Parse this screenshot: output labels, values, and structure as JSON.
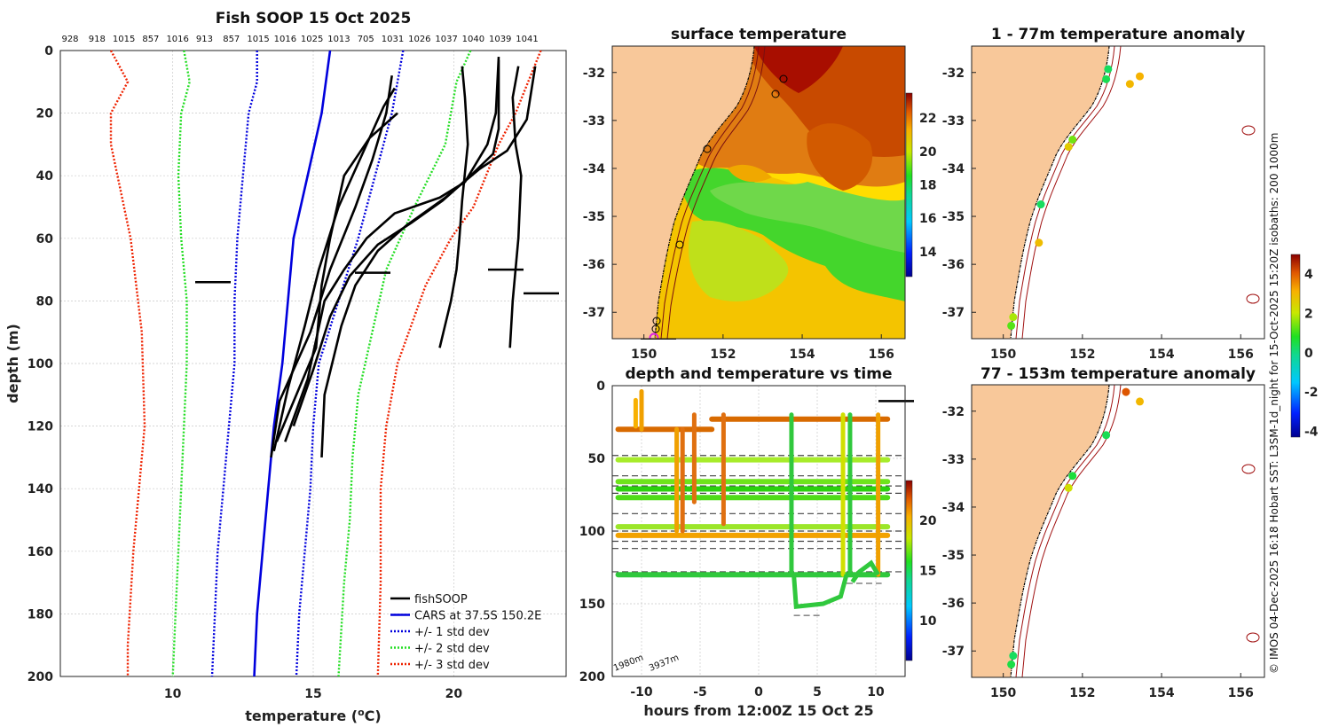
{
  "chart_data": [
    {
      "type": "line",
      "title": "Fish SOOP 15 Oct 2025",
      "xlabel": "temperature (°C)",
      "ylabel": "depth (m)",
      "xlim": [
        6,
        24
      ],
      "ylim": [
        200,
        0
      ],
      "xticks": [
        "10",
        "15",
        "20"
      ],
      "yticks": [
        "0",
        "20",
        "40",
        "60",
        "80",
        "100",
        "120",
        "140",
        "160",
        "180",
        "200"
      ],
      "top_labels": [
        "928",
        "918",
        "1015",
        "857",
        "1016",
        "913",
        "857",
        "1015",
        "1016",
        "1025",
        "1013",
        "705",
        "1031",
        "1026",
        "1037",
        "1040",
        "1039",
        "1041"
      ],
      "legend": [
        "fishSOOP",
        "CARS at 37.5S 150.2E",
        "+/- 1 std dev",
        "+/- 2 std dev",
        "+/- 3 std dev"
      ],
      "series": [
        {
          "name": "CARS at 37.5S 150.2E",
          "color": "#0000dd",
          "points": [
            [
              15.6,
              0
            ],
            [
              15.3,
              20
            ],
            [
              14.8,
              40
            ],
            [
              14.3,
              60
            ],
            [
              13.9,
              100
            ],
            [
              13.6,
              120
            ],
            [
              13.4,
              140
            ],
            [
              13.2,
              160
            ],
            [
              13.0,
              180
            ],
            [
              12.9,
              200
            ]
          ]
        },
        {
          "name": "-1 std dev",
          "color": "#0000dd",
          "points": [
            [
              13.0,
              0
            ],
            [
              13.0,
              10
            ],
            [
              12.7,
              20
            ],
            [
              12.5,
              40
            ],
            [
              12.3,
              60
            ],
            [
              12.2,
              80
            ],
            [
              12.2,
              100
            ],
            [
              12.0,
              120
            ],
            [
              11.8,
              140
            ],
            [
              11.6,
              160
            ],
            [
              11.5,
              180
            ],
            [
              11.4,
              200
            ]
          ]
        },
        {
          "name": "+1 std dev",
          "color": "#0000dd",
          "points": [
            [
              18.2,
              0
            ],
            [
              17.8,
              20
            ],
            [
              17.2,
              40
            ],
            [
              16.6,
              60
            ],
            [
              15.9,
              80
            ],
            [
              15.2,
              100
            ],
            [
              15.0,
              120
            ],
            [
              14.9,
              140
            ],
            [
              14.7,
              160
            ],
            [
              14.5,
              180
            ],
            [
              14.4,
              200
            ]
          ]
        },
        {
          "name": "-2 std dev",
          "color": "#22dd22",
          "points": [
            [
              10.4,
              0
            ],
            [
              10.6,
              10
            ],
            [
              10.3,
              20
            ],
            [
              10.2,
              40
            ],
            [
              10.3,
              60
            ],
            [
              10.5,
              80
            ],
            [
              10.5,
              100
            ],
            [
              10.4,
              120
            ],
            [
              10.3,
              140
            ],
            [
              10.2,
              160
            ],
            [
              10.1,
              180
            ],
            [
              10.0,
              200
            ]
          ]
        },
        {
          "name": "+2 std dev",
          "color": "#22dd22",
          "points": [
            [
              20.6,
              0
            ],
            [
              20.1,
              10
            ],
            [
              19.7,
              30
            ],
            [
              18.6,
              50
            ],
            [
              17.6,
              70
            ],
            [
              17.1,
              90
            ],
            [
              16.6,
              110
            ],
            [
              16.4,
              130
            ],
            [
              16.3,
              150
            ],
            [
              16.1,
              170
            ],
            [
              15.9,
              200
            ]
          ]
        },
        {
          "name": "-3 std dev",
          "color": "#ee2200",
          "points": [
            [
              7.8,
              0
            ],
            [
              8.4,
              10
            ],
            [
              7.8,
              20
            ],
            [
              7.8,
              30
            ],
            [
              8.5,
              60
            ],
            [
              8.9,
              90
            ],
            [
              9.0,
              120
            ],
            [
              8.8,
              140
            ],
            [
              8.6,
              160
            ],
            [
              8.4,
              190
            ],
            [
              8.4,
              200
            ]
          ]
        },
        {
          "name": "+3 std dev",
          "color": "#ee2200",
          "points": [
            [
              23.1,
              0
            ],
            [
              22.2,
              20
            ],
            [
              21.6,
              30
            ],
            [
              20.7,
              50
            ],
            [
              19.9,
              60
            ],
            [
              19.0,
              75
            ],
            [
              18.0,
              100
            ],
            [
              17.6,
              120
            ],
            [
              17.4,
              140
            ],
            [
              17.4,
              170
            ],
            [
              17.3,
              200
            ]
          ]
        },
        {
          "name": "fishSOOP profile 1",
          "color": "#000000",
          "points": [
            [
              13.5,
              130
            ],
            [
              13.8,
              112
            ],
            [
              14.4,
              100
            ],
            [
              14.9,
              90
            ],
            [
              15.6,
              70
            ],
            [
              16.5,
              50
            ],
            [
              17.1,
              35
            ],
            [
              17.6,
              20
            ],
            [
              17.8,
              8
            ]
          ]
        },
        {
          "name": "fishSOOP profile 2",
          "color": "#000000",
          "points": [
            [
              13.6,
              128
            ],
            [
              14.1,
              108
            ],
            [
              14.7,
              88
            ],
            [
              15.2,
              70
            ],
            [
              15.9,
              50
            ],
            [
              16.9,
              30
            ],
            [
              17.5,
              18
            ],
            [
              17.9,
              12
            ]
          ]
        },
        {
          "name": "fishSOOP profile 3",
          "color": "#000000",
          "points": [
            [
              13.7,
              125
            ],
            [
              14.4,
              110
            ],
            [
              15.1,
              95
            ],
            [
              15.3,
              75
            ],
            [
              15.6,
              60
            ],
            [
              16.1,
              40
            ],
            [
              17.0,
              28
            ],
            [
              18.0,
              20
            ]
          ]
        },
        {
          "name": "fishSOOP profile 4",
          "color": "#000000",
          "points": [
            [
              14.0,
              125
            ],
            [
              14.8,
              105
            ],
            [
              15.4,
              80
            ],
            [
              16.1,
              70
            ],
            [
              16.9,
              60
            ],
            [
              17.9,
              52
            ],
            [
              19.5,
              47
            ],
            [
              20.4,
              42
            ],
            [
              21.2,
              30
            ],
            [
              21.5,
              20
            ],
            [
              21.6,
              2
            ]
          ]
        },
        {
          "name": "fishSOOP profile 5",
          "color": "#000000",
          "points": [
            [
              14.3,
              120
            ],
            [
              15.0,
              102
            ],
            [
              15.6,
              85
            ],
            [
              16.3,
              72
            ],
            [
              17.3,
              62
            ],
            [
              18.5,
              55
            ],
            [
              19.6,
              48
            ],
            [
              20.6,
              40
            ],
            [
              21.4,
              33
            ],
            [
              21.6,
              25
            ],
            [
              21.6,
              3
            ]
          ]
        },
        {
          "name": "fishSOOP profile 6",
          "color": "#000000",
          "points": [
            [
              15.3,
              130
            ],
            [
              15.4,
              110
            ],
            [
              16.0,
              88
            ],
            [
              16.5,
              75
            ],
            [
              17.3,
              64
            ],
            [
              18.3,
              56
            ],
            [
              19.7,
              47
            ],
            [
              20.9,
              38
            ],
            [
              21.9,
              32
            ],
            [
              22.6,
              22
            ],
            [
              22.9,
              5
            ]
          ]
        },
        {
          "name": "fishSOOP profile 7",
          "color": "#000000",
          "points": [
            [
              19.5,
              95
            ],
            [
              19.9,
              80
            ],
            [
              20.1,
              70
            ],
            [
              20.2,
              60
            ],
            [
              20.3,
              48
            ],
            [
              20.5,
              30
            ],
            [
              20.4,
              15
            ],
            [
              20.3,
              5
            ]
          ]
        },
        {
          "name": "fishSOOP profile 8",
          "color": "#000000",
          "points": [
            [
              22.0,
              95
            ],
            [
              22.1,
              80
            ],
            [
              22.3,
              60
            ],
            [
              22.4,
              40
            ],
            [
              22.2,
              30
            ],
            [
              22.1,
              15
            ],
            [
              22.3,
              5
            ]
          ]
        }
      ]
    },
    {
      "type": "heatmap",
      "title": "surface temperature",
      "xticks": [
        "150",
        "152",
        "154",
        "156"
      ],
      "yticks": [
        "-32",
        "-33",
        "-34",
        "-35",
        "-36",
        "-37"
      ],
      "colorbar_ticks": [
        "22",
        "20",
        "18",
        "16",
        "14"
      ],
      "colorbar_range": [
        12.5,
        23.5
      ]
    },
    {
      "type": "scatter",
      "title": "depth and temperature vs time",
      "xlabel": "hours from 12:00Z 15 Oct 25",
      "xticks": [
        "-10",
        "-5",
        "0",
        "5",
        "10"
      ],
      "yticks": [
        "0",
        "50",
        "100",
        "150",
        "200"
      ],
      "xlim": [
        -12.5,
        12.5
      ],
      "ylim": [
        200,
        0
      ],
      "colorbar_ticks": [
        "20",
        "15",
        "10"
      ],
      "annotations": [
        "1980m",
        "3937m"
      ],
      "tracks": [
        {
          "depth": 51,
          "t_start": -12,
          "t_end": 11,
          "color": "#a7ec2a"
        },
        {
          "depth": 66,
          "t_start": -12,
          "t_end": 11,
          "color": "#6ee41c"
        },
        {
          "depth": 71,
          "t_start": -12,
          "t_end": 11,
          "color": "#2bd10e"
        },
        {
          "depth": 77,
          "t_start": -12,
          "t_end": 11,
          "color": "#4fdc18"
        },
        {
          "depth": 97,
          "t_start": -12,
          "t_end": 11,
          "color": "#9be629"
        },
        {
          "depth": 103,
          "t_start": -12,
          "t_end": 11,
          "color": "#f2a200"
        },
        {
          "depth": 130,
          "t_start": -12,
          "t_end": 11,
          "color": "#30c83d"
        },
        {
          "depth": 30,
          "t_start": -12,
          "t_end": -4,
          "color": "#d86a00"
        },
        {
          "depth": 23,
          "t_start": -4,
          "t_end": 11,
          "color": "#d86a00"
        }
      ]
    },
    {
      "type": "scatter",
      "title": "1 - 77m temperature anomaly",
      "xticks": [
        "150",
        "152",
        "154",
        "156"
      ],
      "yticks": [
        "-32",
        "-33",
        "-34",
        "-35",
        "-36",
        "-37"
      ],
      "points": [
        {
          "lon": 152.65,
          "lat": -31.93,
          "value": 0.3
        },
        {
          "lon": 152.6,
          "lat": -32.14,
          "value": 0.4
        },
        {
          "lon": 153.2,
          "lat": -32.24,
          "value": 3.0
        },
        {
          "lon": 153.45,
          "lat": -32.08,
          "value": 3.1
        },
        {
          "lon": 151.75,
          "lat": -33.4,
          "value": 1.4
        },
        {
          "lon": 151.65,
          "lat": -33.55,
          "value": 2.6
        },
        {
          "lon": 150.95,
          "lat": -34.75,
          "value": 0.3
        },
        {
          "lon": 150.9,
          "lat": -35.55,
          "value": 2.9
        },
        {
          "lon": 150.25,
          "lat": -37.1,
          "value": 1.8
        },
        {
          "lon": 150.2,
          "lat": -37.28,
          "value": 1.2
        }
      ]
    },
    {
      "type": "scatter",
      "title": "77 - 153m temperature anomaly",
      "xticks": [
        "150",
        "152",
        "154",
        "156"
      ],
      "yticks": [
        "-32",
        "-33",
        "-34",
        "-35",
        "-36",
        "-37"
      ],
      "colorbar_ticks": [
        "4",
        "2",
        "0",
        "-2",
        "-4"
      ],
      "colorbar_range": [
        -4.3,
        5.0
      ],
      "points": [
        {
          "lon": 153.1,
          "lat": -31.6,
          "value": 4.1
        },
        {
          "lon": 153.45,
          "lat": -31.8,
          "value": 3.0
        },
        {
          "lon": 152.6,
          "lat": -32.5,
          "value": 0.4
        },
        {
          "lon": 151.75,
          "lat": -33.35,
          "value": 0.6
        },
        {
          "lon": 151.65,
          "lat": -33.6,
          "value": 2.2
        },
        {
          "lon": 150.25,
          "lat": -37.1,
          "value": 0.3
        },
        {
          "lon": 150.2,
          "lat": -37.28,
          "value": 0.5
        }
      ]
    }
  ],
  "credit": "© IMOS 04-Dec-2025 16:18 Hobart SST: L3SM-1d_night for 15-Oct-2025 15:20Z isobaths: 200  1000m",
  "colors": {
    "land": "#f8c89a",
    "coast": "#000000",
    "isobath": "#a01010",
    "track": "#8a1a10"
  }
}
